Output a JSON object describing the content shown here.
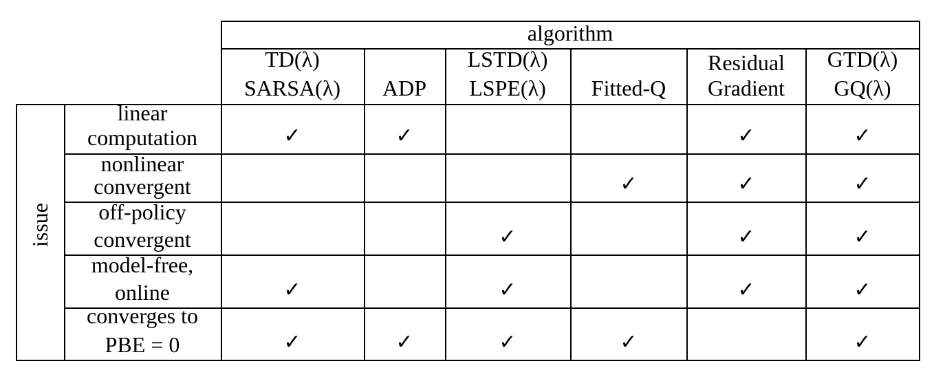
{
  "header": {
    "group_label": "algorithm",
    "columns": [
      {
        "line1": "TD(λ)",
        "line2": "SARSA(λ)"
      },
      {
        "line1": "",
        "line2": "ADP"
      },
      {
        "line1": "LSTD(λ)",
        "line2": "LSPE(λ)"
      },
      {
        "line1": "",
        "line2": "Fitted-Q"
      },
      {
        "line1": "Residual",
        "line2": "Gradient"
      },
      {
        "line1": "GTD(λ)",
        "line2": "GQ(λ)"
      }
    ]
  },
  "row_group_label": "issue",
  "rows": [
    {
      "line1": "linear",
      "line2": "computation",
      "checks": [
        true,
        true,
        false,
        false,
        true,
        true
      ]
    },
    {
      "line1": "nonlinear",
      "line2": "convergent",
      "checks": [
        false,
        false,
        false,
        true,
        true,
        true
      ]
    },
    {
      "line1": "off-policy",
      "line2": "convergent",
      "checks": [
        false,
        false,
        true,
        false,
        true,
        true
      ]
    },
    {
      "line1": "model-free,",
      "line2": "online",
      "checks": [
        true,
        false,
        true,
        false,
        true,
        true
      ]
    },
    {
      "line1": "converges to",
      "line2": "PBE = 0",
      "checks": [
        true,
        true,
        true,
        true,
        false,
        true
      ]
    }
  ],
  "check_symbol": "✓"
}
